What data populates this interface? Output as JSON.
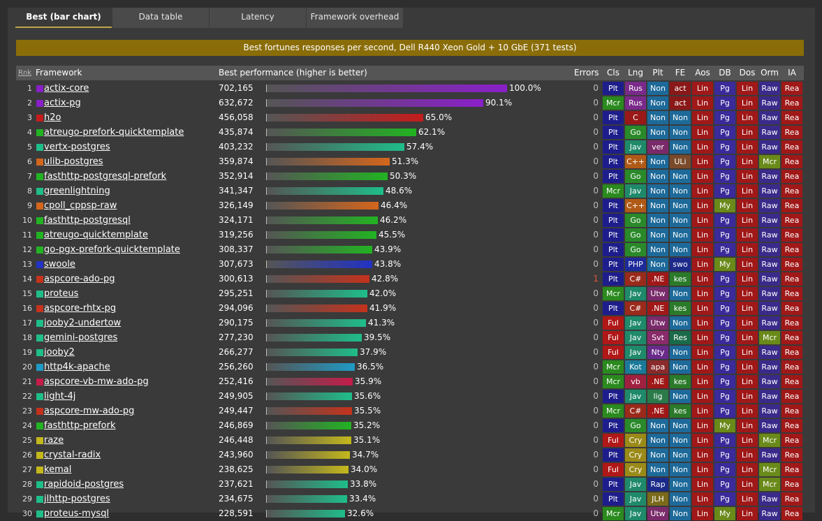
{
  "tabs": [
    {
      "label": "Best (bar chart)",
      "active": true
    },
    {
      "label": "Data table",
      "active": false
    },
    {
      "label": "Latency",
      "active": false
    },
    {
      "label": "Framework overhead",
      "active": false
    }
  ],
  "title": "Best fortunes responses per second, Dell R440 Xeon Gold + 10 GbE   (371 tests)",
  "headers": {
    "rnk": "Rnk",
    "framework": "Framework",
    "best": "Best performance (higher is better)",
    "errors": "Errors",
    "cols": [
      "Cls",
      "Lng",
      "Plt",
      "FE",
      "Aos",
      "DB",
      "Dos",
      "Orm",
      "IA"
    ]
  },
  "colors": {
    "Plt": "#1d1d8c",
    "Mcr": "#2a8a1e",
    "Ful": "#b01717",
    "Rus": "#7a2a8a",
    "C": "#9a1818",
    "Go": "#2a8a2a",
    "Jav": "#1f8a6a",
    "C++": "#b05a17",
    "PHP": "#1d2a9a",
    "C#": "#9a2a1a",
    "Kot": "#1a7a9a",
    "vb": "#a02040",
    "Cry": "#9a8a18",
    "Non": "#1d6a9a",
    "Utw": "#7a2a6a",
    ".NE": "#a01818",
    "Svt": "#8a2a6a",
    "Nty": "#6a2a8a",
    "apa": "#8a2a2a",
    "lig": "#2a7a4a",
    "JLH": "#7a6a1a",
    "Rap": "#1a2a8a",
    "act": "#8a1818",
    "ULi": "#7a4a2a",
    "swo": "#1d2a8a",
    "kes": "#2a7a2a",
    "Res": "#1a6a4a",
    "Lin": "#a01818",
    "Pg": "#3a2a9a",
    "My": "#6a8a1a",
    "Raw": "#3a2a8a",
    "Ful_orm": "#1d6a9a",
    "Mcr_orm": "#6a8a1a",
    "Rea": "#a01818"
  },
  "chart_data": {
    "type": "bar",
    "title": "Best fortunes responses per second, Dell R440 Xeon Gold + 10 GbE   (371 tests)",
    "xlabel": "",
    "ylabel": "Best performance (higher is better)",
    "categories": [
      "actix-core",
      "actix-pg",
      "h2o",
      "atreugo-prefork-quicktemplate",
      "vertx-postgres",
      "ulib-postgres",
      "fasthttp-postgresql-prefork",
      "greenlightning",
      "cpoll_cppsp-raw",
      "fasthttp-postgresql",
      "atreugo-quicktemplate",
      "go-pgx-prefork-quicktemplate",
      "swoole",
      "aspcore-ado-pg",
      "proteus",
      "aspcore-rhtx-pg",
      "jooby2-undertow",
      "gemini-postgres",
      "jooby2",
      "http4k-apache",
      "aspcore-vb-mw-ado-pg",
      "light-4j",
      "aspcore-mw-ado-pg",
      "fasthttp-prefork",
      "raze",
      "crystal-radix",
      "kemal",
      "rapidoid-postgres",
      "jlhttp-postgres",
      "proteus-mysql"
    ],
    "values": [
      702165,
      632672,
      456058,
      435874,
      403232,
      359874,
      352914,
      341347,
      326149,
      324171,
      319256,
      308337,
      307673,
      300613,
      295251,
      294096,
      290175,
      277230,
      266277,
      256260,
      252416,
      249905,
      249447,
      246869,
      246448,
      243960,
      238625,
      237621,
      234675,
      228591
    ]
  },
  "rows": [
    {
      "rank": "1",
      "name": "actix-core",
      "value": "702,165",
      "pct": "100.0%",
      "frac": 1.0,
      "errors": "0",
      "color": "#8a1fc9",
      "attrs": [
        "Plt",
        "Rus",
        "Non",
        "act",
        "Lin",
        "Pg",
        "Lin",
        "Raw",
        "Rea"
      ]
    },
    {
      "rank": "2",
      "name": "actix-pg",
      "value": "632,672",
      "pct": "90.1%",
      "frac": 0.901,
      "errors": "0",
      "color": "#8a1fc9",
      "attrs": [
        "Mcr",
        "Rus",
        "Non",
        "act",
        "Lin",
        "Pg",
        "Lin",
        "Raw",
        "Rea"
      ]
    },
    {
      "rank": "3",
      "name": "h2o",
      "value": "456,058",
      "pct": "65.0%",
      "frac": 0.65,
      "errors": "0",
      "color": "#c41c1c",
      "attrs": [
        "Plt",
        "C",
        "Non",
        "Non",
        "Lin",
        "Pg",
        "Lin",
        "Raw",
        "Rea"
      ]
    },
    {
      "rank": "4",
      "name": "atreugo-prefork-quicktemplate",
      "value": "435,874",
      "pct": "62.1%",
      "frac": 0.621,
      "errors": "0",
      "color": "#22b322",
      "attrs": [
        "Plt",
        "Go",
        "Non",
        "Non",
        "Lin",
        "Pg",
        "Lin",
        "Raw",
        "Rea"
      ]
    },
    {
      "rank": "5",
      "name": "vertx-postgres",
      "value": "403,232",
      "pct": "57.4%",
      "frac": 0.574,
      "errors": "0",
      "color": "#1fbd8a",
      "attrs": [
        "Plt",
        "Jav",
        "ver",
        "Non",
        "Lin",
        "Pg",
        "Lin",
        "Raw",
        "Rea"
      ]
    },
    {
      "rank": "6",
      "name": "ulib-postgres",
      "value": "359,874",
      "pct": "51.3%",
      "frac": 0.513,
      "errors": "0",
      "color": "#d4661c",
      "attrs": [
        "Plt",
        "C++",
        "Non",
        "ULi",
        "Lin",
        "Pg",
        "Lin",
        "Mcr",
        "Rea"
      ]
    },
    {
      "rank": "7",
      "name": "fasthttp-postgresql-prefork",
      "value": "352,914",
      "pct": "50.3%",
      "frac": 0.503,
      "errors": "0",
      "color": "#22b322",
      "attrs": [
        "Plt",
        "Go",
        "Non",
        "Non",
        "Lin",
        "Pg",
        "Lin",
        "Raw",
        "Rea"
      ]
    },
    {
      "rank": "8",
      "name": "greenlightning",
      "value": "341,347",
      "pct": "48.6%",
      "frac": 0.486,
      "errors": "0",
      "color": "#1fbd8a",
      "attrs": [
        "Mcr",
        "Jav",
        "Non",
        "Non",
        "Lin",
        "Pg",
        "Lin",
        "Raw",
        "Rea"
      ]
    },
    {
      "rank": "9",
      "name": "cpoll_cppsp-raw",
      "value": "326,149",
      "pct": "46.4%",
      "frac": 0.464,
      "errors": "0",
      "color": "#d4661c",
      "attrs": [
        "Plt",
        "C++",
        "Non",
        "Non",
        "Lin",
        "My",
        "Lin",
        "Raw",
        "Rea"
      ]
    },
    {
      "rank": "10",
      "name": "fasthttp-postgresql",
      "value": "324,171",
      "pct": "46.2%",
      "frac": 0.462,
      "errors": "0",
      "color": "#22b322",
      "attrs": [
        "Plt",
        "Go",
        "Non",
        "Non",
        "Lin",
        "Pg",
        "Lin",
        "Raw",
        "Rea"
      ]
    },
    {
      "rank": "11",
      "name": "atreugo-quicktemplate",
      "value": "319,256",
      "pct": "45.5%",
      "frac": 0.455,
      "errors": "0",
      "color": "#22b322",
      "attrs": [
        "Plt",
        "Go",
        "Non",
        "Non",
        "Lin",
        "Pg",
        "Lin",
        "Raw",
        "Rea"
      ]
    },
    {
      "rank": "12",
      "name": "go-pgx-prefork-quicktemplate",
      "value": "308,337",
      "pct": "43.9%",
      "frac": 0.439,
      "errors": "0",
      "color": "#22b322",
      "attrs": [
        "Plt",
        "Go",
        "Non",
        "Non",
        "Lin",
        "Pg",
        "Lin",
        "Raw",
        "Rea"
      ]
    },
    {
      "rank": "13",
      "name": "swoole",
      "value": "307,673",
      "pct": "43.8%",
      "frac": 0.438,
      "errors": "0",
      "color": "#2232c4",
      "attrs": [
        "Plt",
        "PHP",
        "Non",
        "swo",
        "Lin",
        "My",
        "Lin",
        "Raw",
        "Rea"
      ]
    },
    {
      "rank": "14",
      "name": "aspcore-ado-pg",
      "value": "300,613",
      "pct": "42.8%",
      "frac": 0.428,
      "errors": "1",
      "color": "#c4321c",
      "attrs": [
        "Plt",
        "C#",
        ".NE",
        "kes",
        "Lin",
        "Pg",
        "Lin",
        "Raw",
        "Rea"
      ]
    },
    {
      "rank": "15",
      "name": "proteus",
      "value": "295,251",
      "pct": "42.0%",
      "frac": 0.42,
      "errors": "0",
      "color": "#1fbd8a",
      "attrs": [
        "Mcr",
        "Jav",
        "Utw",
        "Non",
        "Lin",
        "Pg",
        "Lin",
        "Raw",
        "Rea"
      ]
    },
    {
      "rank": "16",
      "name": "aspcore-rhtx-pg",
      "value": "294,096",
      "pct": "41.9%",
      "frac": 0.419,
      "errors": "0",
      "color": "#c4321c",
      "attrs": [
        "Plt",
        "C#",
        ".NE",
        "kes",
        "Lin",
        "Pg",
        "Lin",
        "Raw",
        "Rea"
      ]
    },
    {
      "rank": "17",
      "name": "jooby2-undertow",
      "value": "290,175",
      "pct": "41.3%",
      "frac": 0.413,
      "errors": "0",
      "color": "#1fbd8a",
      "attrs": [
        "Ful",
        "Jav",
        "Utw",
        "Non",
        "Lin",
        "Pg",
        "Lin",
        "Raw",
        "Rea"
      ]
    },
    {
      "rank": "18",
      "name": "gemini-postgres",
      "value": "277,230",
      "pct": "39.5%",
      "frac": 0.395,
      "errors": "0",
      "color": "#1fbd8a",
      "attrs": [
        "Ful",
        "Jav",
        "Svt",
        "Res",
        "Lin",
        "Pg",
        "Lin",
        "Mcr",
        "Rea"
      ]
    },
    {
      "rank": "19",
      "name": "jooby2",
      "value": "266,277",
      "pct": "37.9%",
      "frac": 0.379,
      "errors": "0",
      "color": "#1fbd8a",
      "attrs": [
        "Ful",
        "Jav",
        "Nty",
        "Non",
        "Lin",
        "Pg",
        "Lin",
        "Raw",
        "Rea"
      ]
    },
    {
      "rank": "20",
      "name": "http4k-apache",
      "value": "256,260",
      "pct": "36.5%",
      "frac": 0.365,
      "errors": "0",
      "color": "#1f9ac4",
      "attrs": [
        "Mcr",
        "Kot",
        "apa",
        "Non",
        "Lin",
        "Pg",
        "Lin",
        "Raw",
        "Rea"
      ]
    },
    {
      "rank": "21",
      "name": "aspcore-vb-mw-ado-pg",
      "value": "252,416",
      "pct": "35.9%",
      "frac": 0.359,
      "errors": "0",
      "color": "#c41c4a",
      "attrs": [
        "Mcr",
        "vb",
        ".NE",
        "kes",
        "Lin",
        "Pg",
        "Lin",
        "Raw",
        "Rea"
      ]
    },
    {
      "rank": "22",
      "name": "light-4j",
      "value": "249,905",
      "pct": "35.6%",
      "frac": 0.356,
      "errors": "0",
      "color": "#1fbd8a",
      "attrs": [
        "Plt",
        "Jav",
        "lig",
        "Non",
        "Lin",
        "Pg",
        "Lin",
        "Raw",
        "Rea"
      ]
    },
    {
      "rank": "23",
      "name": "aspcore-mw-ado-pg",
      "value": "249,447",
      "pct": "35.5%",
      "frac": 0.355,
      "errors": "0",
      "color": "#c4321c",
      "attrs": [
        "Mcr",
        "C#",
        ".NE",
        "kes",
        "Lin",
        "Pg",
        "Lin",
        "Raw",
        "Rea"
      ]
    },
    {
      "rank": "24",
      "name": "fasthttp-prefork",
      "value": "246,869",
      "pct": "35.2%",
      "frac": 0.352,
      "errors": "0",
      "color": "#22b322",
      "attrs": [
        "Plt",
        "Go",
        "Non",
        "Non",
        "Lin",
        "My",
        "Lin",
        "Raw",
        "Rea"
      ]
    },
    {
      "rank": "25",
      "name": "raze",
      "value": "246,448",
      "pct": "35.1%",
      "frac": 0.351,
      "errors": "0",
      "color": "#c4b81c",
      "attrs": [
        "Ful",
        "Cry",
        "Non",
        "Non",
        "Lin",
        "Pg",
        "Lin",
        "Mcr",
        "Rea"
      ]
    },
    {
      "rank": "26",
      "name": "crystal-radix",
      "value": "243,960",
      "pct": "34.7%",
      "frac": 0.347,
      "errors": "0",
      "color": "#c4b81c",
      "attrs": [
        "Plt",
        "Cry",
        "Non",
        "Non",
        "Lin",
        "Pg",
        "Lin",
        "Raw",
        "Rea"
      ]
    },
    {
      "rank": "27",
      "name": "kemal",
      "value": "238,625",
      "pct": "34.0%",
      "frac": 0.34,
      "errors": "0",
      "color": "#c4b81c",
      "attrs": [
        "Ful",
        "Cry",
        "Non",
        "Non",
        "Lin",
        "Pg",
        "Lin",
        "Mcr",
        "Rea"
      ]
    },
    {
      "rank": "28",
      "name": "rapidoid-postgres",
      "value": "237,621",
      "pct": "33.8%",
      "frac": 0.338,
      "errors": "0",
      "color": "#1fbd8a",
      "attrs": [
        "Plt",
        "Jav",
        "Rap",
        "Non",
        "Lin",
        "Pg",
        "Lin",
        "Mcr",
        "Rea"
      ]
    },
    {
      "rank": "29",
      "name": "jlhttp-postgres",
      "value": "234,675",
      "pct": "33.4%",
      "frac": 0.334,
      "errors": "0",
      "color": "#1fbd8a",
      "attrs": [
        "Plt",
        "Jav",
        "JLH",
        "Non",
        "Lin",
        "Pg",
        "Lin",
        "Raw",
        "Rea"
      ]
    },
    {
      "rank": "30",
      "name": "proteus-mysql",
      "value": "228,591",
      "pct": "32.6%",
      "frac": 0.326,
      "errors": "0",
      "color": "#1fbd8a",
      "attrs": [
        "Mcr",
        "Jav",
        "Utw",
        "Non",
        "Lin",
        "My",
        "Lin",
        "Raw",
        "Rea"
      ]
    }
  ]
}
